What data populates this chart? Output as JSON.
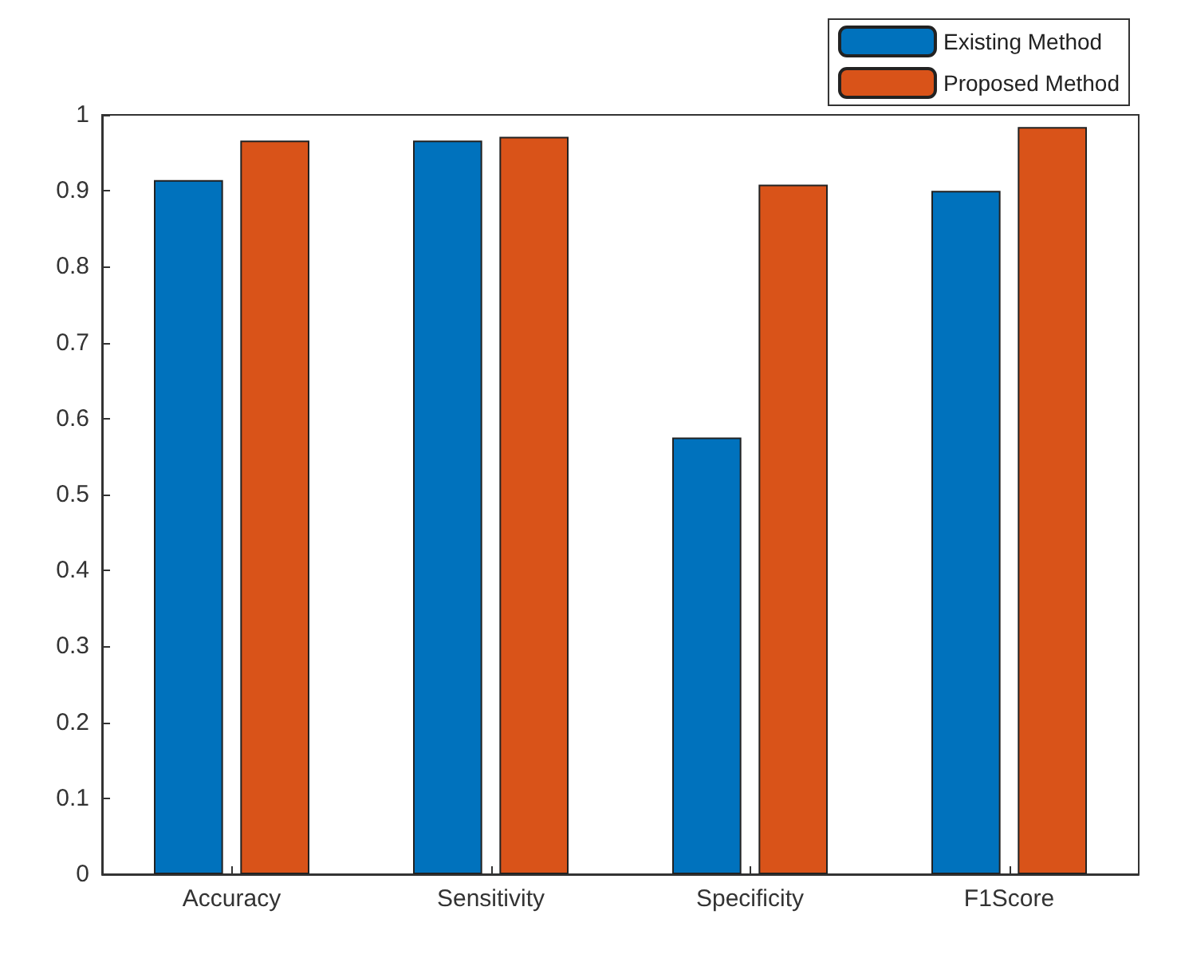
{
  "chart_data": {
    "type": "bar",
    "categories": [
      "Accuracy",
      "Sensitivity",
      "Specificity",
      "F1Score"
    ],
    "series": [
      {
        "name": "Existing Method",
        "color": "#0072bd",
        "values": [
          0.914,
          0.966,
          0.575,
          0.9
        ]
      },
      {
        "name": "Proposed Method",
        "color": "#d95319",
        "values": [
          0.966,
          0.971,
          0.908,
          0.984
        ]
      }
    ],
    "ylim": [
      0,
      1
    ],
    "yticks": [
      0,
      0.1,
      0.2,
      0.3,
      0.4,
      0.5,
      0.6,
      0.7,
      0.8,
      0.9,
      1
    ],
    "grid": false,
    "legend": "top right"
  }
}
